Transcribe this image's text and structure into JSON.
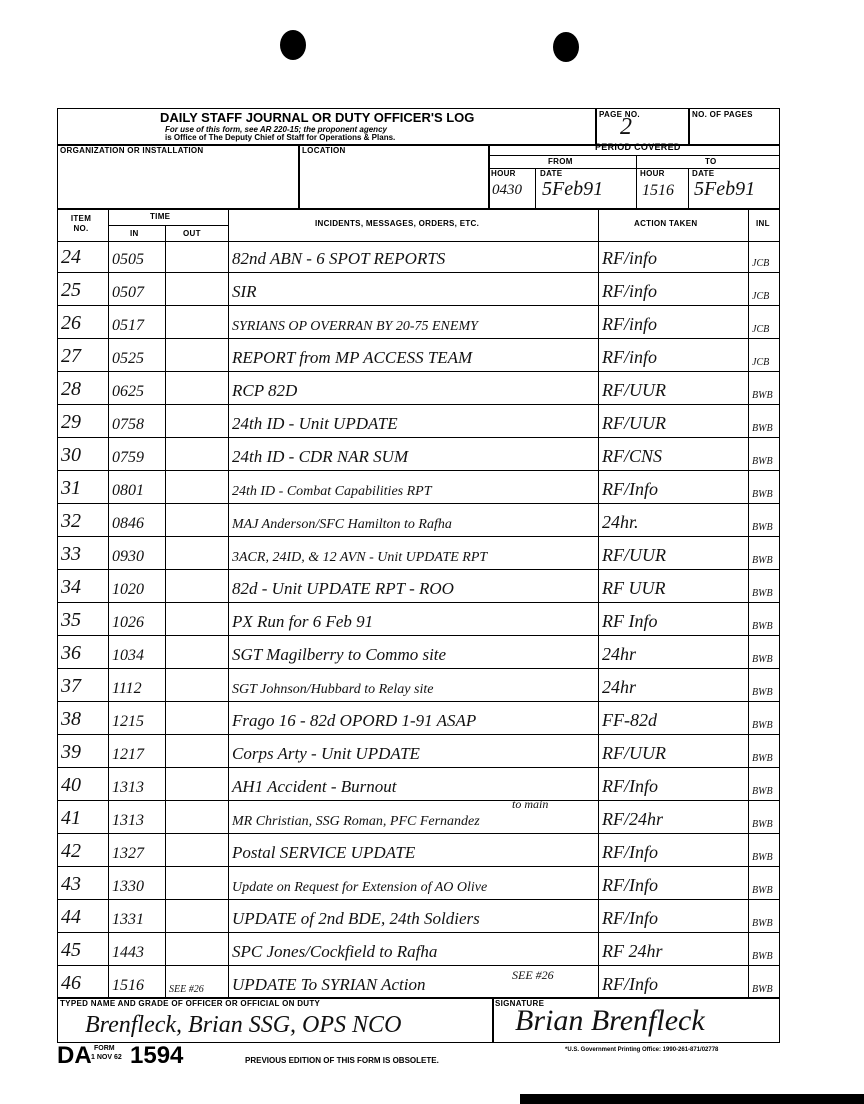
{
  "form": {
    "title": "DAILY STAFF JOURNAL OR DUTY OFFICER'S LOG",
    "subtitle_1": "For use of this form, see AR 220-15; the proponent agency",
    "subtitle_2": "is Office of The Deputy Chief of Staff for Operations & Plans.",
    "page_no_label": "PAGE NO.",
    "page_no": "2",
    "no_of_pages_label": "NO. OF PAGES",
    "no_of_pages": "",
    "organization_label": "ORGANIZATION OR INSTALLATION",
    "location_label": "LOCATION",
    "period_label": "PERIOD COVERED",
    "from_label": "FROM",
    "to_label": "TO",
    "hour_label": "HOUR",
    "date_label": "DATE",
    "from_hour": "0430",
    "from_date": "5Feb91",
    "to_hour": "1516",
    "to_date": "5Feb91"
  },
  "columns": {
    "item_no": "ITEM NO.",
    "time": "TIME",
    "in": "IN",
    "out": "OUT",
    "incidents": "INCIDENTS, MESSAGES, ORDERS, ETC.",
    "action": "ACTION TAKEN",
    "initials": "INL"
  },
  "entries": [
    {
      "no": "24",
      "in": "0505",
      "out": "",
      "text": "82nd ABN - 6 SPOT REPORTS",
      "action": "RF/info",
      "inl": "JCB"
    },
    {
      "no": "25",
      "in": "0507",
      "out": "",
      "text": "SIR",
      "action": "RF/info",
      "inl": "JCB"
    },
    {
      "no": "26",
      "in": "0517",
      "out": "",
      "text": "SYRIANS OP OVERRAN BY 20-75 ENEMY",
      "action": "RF/info",
      "inl": "JCB"
    },
    {
      "no": "27",
      "in": "0525",
      "out": "",
      "text": "REPORT from MP ACCESS TEAM",
      "action": "RF/info",
      "inl": "JCB"
    },
    {
      "no": "28",
      "in": "0625",
      "out": "",
      "text": "RCP 82D",
      "action": "RF/UUR",
      "inl": "BWB"
    },
    {
      "no": "29",
      "in": "0758",
      "out": "",
      "text": "24th ID - Unit UPDATE",
      "action": "RF/UUR",
      "inl": "BWB"
    },
    {
      "no": "30",
      "in": "0759",
      "out": "",
      "text": "24th ID - CDR NAR SUM",
      "action": "RF/CNS",
      "inl": "BWB"
    },
    {
      "no": "31",
      "in": "0801",
      "out": "",
      "text": "24th ID - Combat Capabilities RPT",
      "action": "RF/Info",
      "inl": "BWB"
    },
    {
      "no": "32",
      "in": "0846",
      "out": "",
      "text": "MAJ Anderson/SFC Hamilton to Rafha",
      "action": "24hr.",
      "inl": "BWB"
    },
    {
      "no": "33",
      "in": "0930",
      "out": "",
      "text": "3ACR, 24ID, & 12 AVN - Unit UPDATE RPT",
      "action": "RF/UUR",
      "inl": "BWB"
    },
    {
      "no": "34",
      "in": "1020",
      "out": "",
      "text": "82d - Unit UPDATE RPT - ROO",
      "action": "RF UUR",
      "inl": "BWB"
    },
    {
      "no": "35",
      "in": "1026",
      "out": "",
      "text": "PX Run for 6 Feb 91",
      "action": "RF Info",
      "inl": "BWB"
    },
    {
      "no": "36",
      "in": "1034",
      "out": "",
      "text": "SGT Magilberry to Commo site",
      "action": "24hr",
      "inl": "BWB"
    },
    {
      "no": "37",
      "in": "1112",
      "out": "",
      "text": "SGT Johnson/Hubbard to Relay site",
      "action": "24hr",
      "inl": "BWB"
    },
    {
      "no": "38",
      "in": "1215",
      "out": "",
      "text": "Frago 16 - 82d OPORD 1-91 ASAP",
      "action": "FF-82d",
      "inl": "BWB"
    },
    {
      "no": "39",
      "in": "1217",
      "out": "",
      "text": "Corps Arty - Unit UPDATE",
      "action": "RF/UUR",
      "inl": "BWB"
    },
    {
      "no": "40",
      "in": "1313",
      "out": "",
      "text": "AH1 Accident - Burnout",
      "action": "RF/Info",
      "inl": "BWB"
    },
    {
      "no": "41",
      "in": "1313",
      "out": "",
      "text": "MR Christian, SSG Roman, PFC Fernandez",
      "note": "to main",
      "action": "RF/24hr",
      "inl": "BWB"
    },
    {
      "no": "42",
      "in": "1327",
      "out": "",
      "text": "Postal SERVICE UPDATE",
      "action": "RF/Info",
      "inl": "BWB"
    },
    {
      "no": "43",
      "in": "1330",
      "out": "",
      "text": "Update on Request for Extension of AO Olive",
      "action": "RF/Info",
      "inl": "BWB"
    },
    {
      "no": "44",
      "in": "1331",
      "out": "",
      "text": "UPDATE of 2nd BDE, 24th Soldiers",
      "action": "RF/Info",
      "inl": "BWB"
    },
    {
      "no": "45",
      "in": "1443",
      "out": "",
      "text": "SPC Jones/Cockfield to Rafha",
      "action": "RF 24hr",
      "inl": "BWB"
    },
    {
      "no": "46",
      "in": "1516",
      "out": "SEE #26",
      "text": "UPDATE To SYRIAN Action",
      "note": "SEE #26",
      "action": "RF/Info",
      "inl": "BWB"
    }
  ],
  "footer": {
    "officer_label": "TYPED NAME AND GRADE OF OFFICER OR OFFICIAL ON DUTY",
    "officer": "Brenfleck, Brian SSG, OPS NCO",
    "signature_label": "SIGNATURE",
    "signature": "Brian Brenfleck",
    "form_da": "DA",
    "form_word": "FORM",
    "form_date": "1 NOV 62",
    "form_number": "1594",
    "previous_edition": "PREVIOUS EDITION OF THIS FORM IS OBSOLETE.",
    "gpo": "*U.S. Government Printing Office: 1990-261-871/02778"
  }
}
